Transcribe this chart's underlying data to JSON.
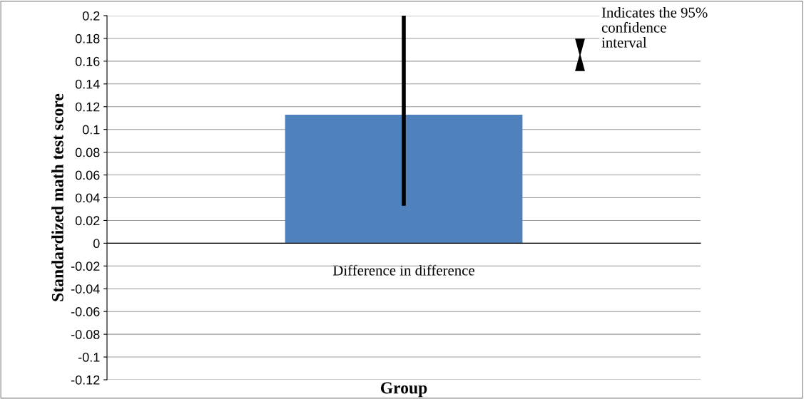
{
  "chart_data": {
    "type": "bar",
    "categories": [
      "Difference in difference"
    ],
    "values": [
      0.113
    ],
    "errors": [
      [
        0.033,
        0.2
      ]
    ],
    "color": "#4f81bd",
    "ylabel": "Standardized math test score",
    "xlabel": "Group",
    "annotations": [
      "Indicates the 95%\nconfidence\ninterval"
    ],
    "ylim": [
      -0.12,
      0.2
    ],
    "yticks": [
      -0.12,
      -0.1,
      -0.08,
      -0.06,
      -0.04,
      -0.02,
      0,
      0.02,
      0.04,
      0.06,
      0.08,
      0.1,
      0.12,
      0.14,
      0.16,
      0.18,
      0.2
    ],
    "grid": "y"
  }
}
